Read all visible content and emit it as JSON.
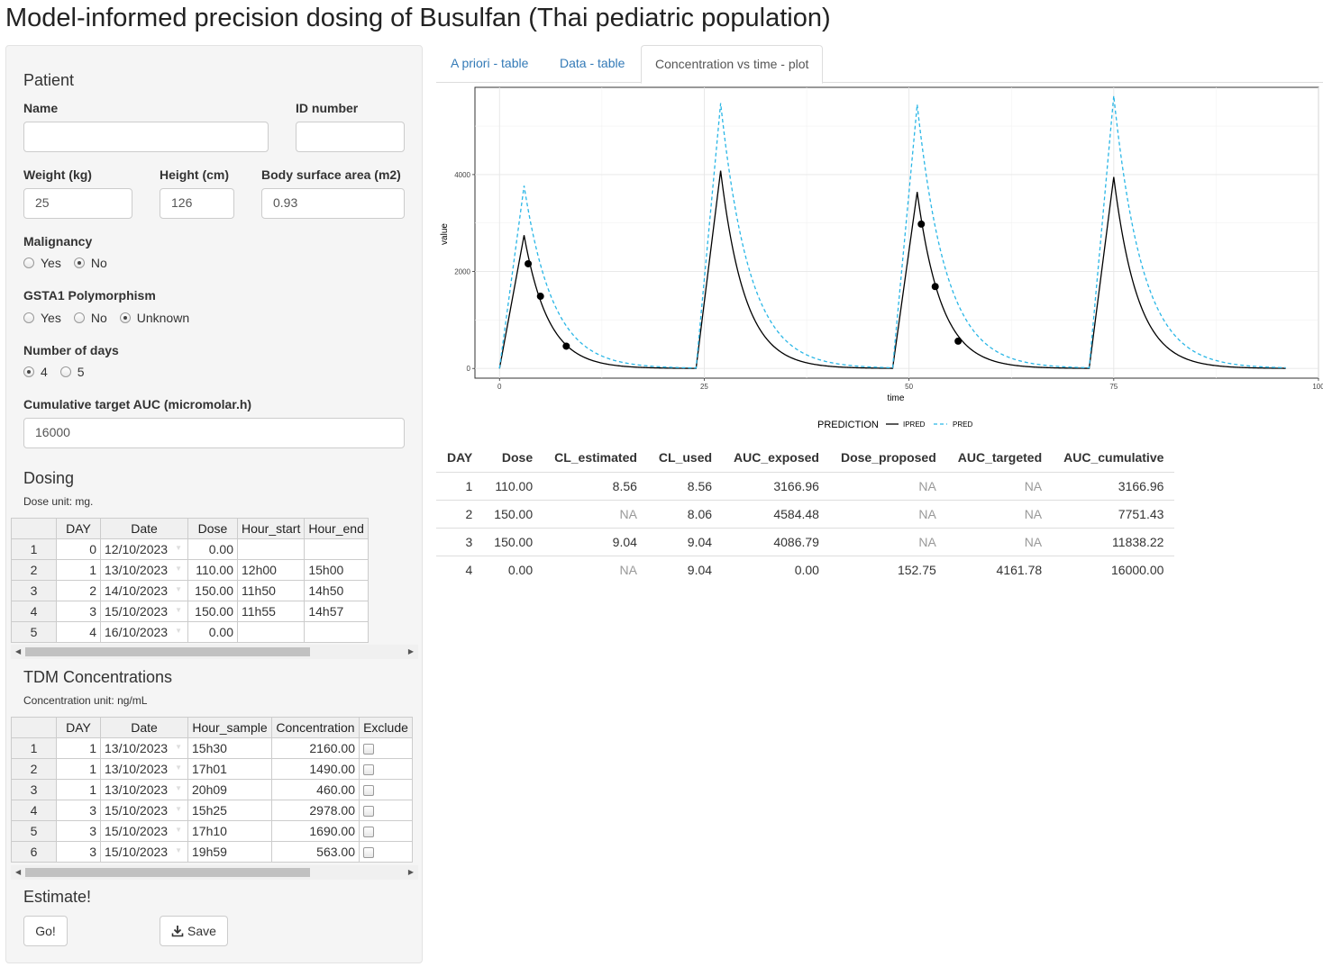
{
  "title": "Model-informed precision dosing of Busulfan (Thai pediatric population)",
  "patient": {
    "heading": "Patient",
    "name_label": "Name",
    "name_value": "",
    "id_label": "ID number",
    "id_value": "",
    "weight_label": "Weight (kg)",
    "weight_value": "25",
    "height_label": "Height (cm)",
    "height_value": "126",
    "bsa_label": "Body surface area (m2)",
    "bsa_value": "0.93",
    "malignancy_label": "Malignancy",
    "malignancy_options": [
      {
        "label": "Yes",
        "checked": false
      },
      {
        "label": "No",
        "checked": true
      }
    ],
    "gsta1_label": "GSTA1 Polymorphism",
    "gsta1_options": [
      {
        "label": "Yes",
        "checked": false
      },
      {
        "label": "No",
        "checked": false
      },
      {
        "label": "Unknown",
        "checked": true
      }
    ],
    "days_label": "Number of days",
    "days_options": [
      {
        "label": "4",
        "checked": true
      },
      {
        "label": "5",
        "checked": false
      }
    ],
    "target_auc_label": "Cumulative target AUC (micromolar.h)",
    "target_auc_value": "16000"
  },
  "dosing": {
    "heading": "Dosing",
    "unit_note": "Dose unit: mg.",
    "columns": [
      "DAY",
      "Date",
      "Dose",
      "Hour_start",
      "Hour_end"
    ],
    "rows": [
      {
        "row": "1",
        "day": "0",
        "date": "12/10/2023",
        "dose": "0.00",
        "start": "",
        "end": ""
      },
      {
        "row": "2",
        "day": "1",
        "date": "13/10/2023",
        "dose": "110.00",
        "start": "12h00",
        "end": "15h00"
      },
      {
        "row": "3",
        "day": "2",
        "date": "14/10/2023",
        "dose": "150.00",
        "start": "11h50",
        "end": "14h50"
      },
      {
        "row": "4",
        "day": "3",
        "date": "15/10/2023",
        "dose": "150.00",
        "start": "11h55",
        "end": "14h57"
      },
      {
        "row": "5",
        "day": "4",
        "date": "16/10/2023",
        "dose": "0.00",
        "start": "",
        "end": ""
      }
    ]
  },
  "tdm": {
    "heading": "TDM Concentrations",
    "unit_note": "Concentration unit: ng/mL",
    "columns": [
      "DAY",
      "Date",
      "Hour_sample",
      "Concentration",
      "Exclude"
    ],
    "rows": [
      {
        "row": "1",
        "day": "1",
        "date": "13/10/2023",
        "hour": "15h30",
        "conc": "2160.00",
        "exclude": false
      },
      {
        "row": "2",
        "day": "1",
        "date": "13/10/2023",
        "hour": "17h01",
        "conc": "1490.00",
        "exclude": false
      },
      {
        "row": "3",
        "day": "1",
        "date": "13/10/2023",
        "hour": "20h09",
        "conc": "460.00",
        "exclude": false
      },
      {
        "row": "4",
        "day": "3",
        "date": "15/10/2023",
        "hour": "15h25",
        "conc": "2978.00",
        "exclude": false
      },
      {
        "row": "5",
        "day": "3",
        "date": "15/10/2023",
        "hour": "17h10",
        "conc": "1690.00",
        "exclude": false
      },
      {
        "row": "6",
        "day": "3",
        "date": "15/10/2023",
        "hour": "19h59",
        "conc": "563.00",
        "exclude": false
      }
    ]
  },
  "estimate": {
    "heading": "Estimate!",
    "go_label": "Go!",
    "save_label": "Save"
  },
  "tabs": [
    {
      "label": "A priori - table",
      "active": false
    },
    {
      "label": "Data - table",
      "active": false
    },
    {
      "label": "Concentration vs time - plot",
      "active": true
    }
  ],
  "colors": {
    "pred": "#29B6E6",
    "ipred": "#000000",
    "link": "#337ab7"
  },
  "chart_data": {
    "type": "line",
    "xlabel": "time",
    "ylabel": "value",
    "xlim": [
      -3,
      100
    ],
    "ylim": [
      -200,
      5800
    ],
    "x_ticks": [
      0,
      25,
      50,
      75,
      100
    ],
    "y_ticks": [
      0,
      2000,
      4000
    ],
    "grid": true,
    "legend": {
      "title": "PREDICTION",
      "position": "bottom",
      "entries": [
        {
          "name": "IPRED",
          "style": "solid",
          "color": "#000000"
        },
        {
          "name": "PRED",
          "style": "dashed",
          "color": "#29B6E6"
        }
      ]
    },
    "series": [
      {
        "name": "IPRED",
        "style": "solid",
        "doses": [
          {
            "t0": 0,
            "tpeak": 3,
            "peak": 2750
          },
          {
            "t0": 24,
            "tpeak": 27,
            "peak": 4080
          },
          {
            "t0": 48,
            "tpeak": 51,
            "peak": 3640
          },
          {
            "t0": 72,
            "tpeak": 75,
            "peak": 3950
          }
        ],
        "half_life": 2.05
      },
      {
        "name": "PRED",
        "style": "dashed",
        "doses": [
          {
            "t0": 0,
            "tpeak": 3,
            "peak": 3770
          },
          {
            "t0": 24,
            "tpeak": 27,
            "peak": 5470
          },
          {
            "t0": 48,
            "tpeak": 51,
            "peak": 5440
          },
          {
            "t0": 72,
            "tpeak": 75,
            "peak": 5620
          }
        ],
        "half_life": 2.45
      }
    ],
    "observations": [
      {
        "x": 3.5,
        "y": 2160
      },
      {
        "x": 5.0,
        "y": 1490
      },
      {
        "x": 8.15,
        "y": 460
      },
      {
        "x": 51.5,
        "y": 2978
      },
      {
        "x": 53.2,
        "y": 1690
      },
      {
        "x": 56.0,
        "y": 563
      }
    ],
    "x_end": 96
  },
  "results": {
    "columns": [
      "DAY",
      "Dose",
      "CL_estimated",
      "CL_used",
      "AUC_exposed",
      "Dose_proposed",
      "AUC_targeted",
      "AUC_cumulative"
    ],
    "rows": [
      [
        "1",
        "110.00",
        "8.56",
        "8.56",
        "3166.96",
        "NA",
        "NA",
        "3166.96"
      ],
      [
        "2",
        "150.00",
        "NA",
        "8.06",
        "4584.48",
        "NA",
        "NA",
        "7751.43"
      ],
      [
        "3",
        "150.00",
        "9.04",
        "9.04",
        "4086.79",
        "NA",
        "NA",
        "11838.22"
      ],
      [
        "4",
        "0.00",
        "NA",
        "9.04",
        "0.00",
        "152.75",
        "4161.78",
        "16000.00"
      ]
    ]
  }
}
